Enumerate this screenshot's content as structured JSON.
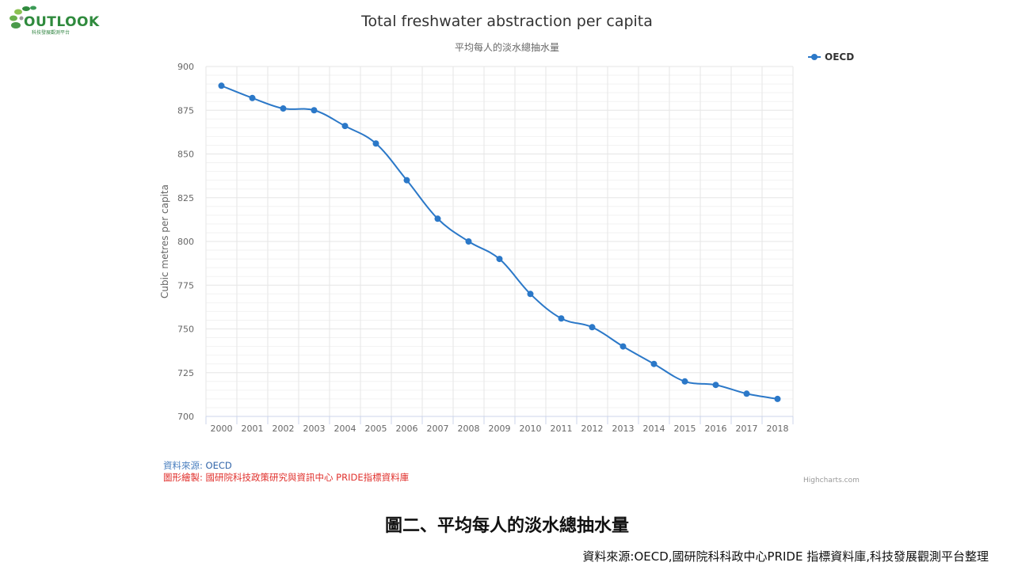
{
  "logo": {
    "text": "OUTLOOK",
    "subtext": "科技發展觀測平台",
    "icon": "leaf-logo-icon",
    "color": "#2f8a3d"
  },
  "legend": {
    "label": "OECD"
  },
  "credits": "Highcharts.com",
  "source": {
    "label": "資料來源:",
    "value": "OECD"
  },
  "drawn_by": "圖形繪製: 國研院科技政策研究與資訊中心 PRIDE指標資料庫",
  "caption": "圖二、平均每人的淡水總抽水量",
  "footer": "資料來源:OECD,國研院科科政中心PRIDE 指標資料庫,科技發展觀測平台整理",
  "colors": {
    "series": "#2b78c8",
    "grid": "#e6e6e6",
    "axis": "#ccd6eb",
    "drawn_by": "#e0302c",
    "source": "#4a7fbf"
  },
  "chart_data": {
    "type": "line",
    "title": "Total freshwater abstraction per capita",
    "subtitle": "平均每人的淡水總抽水量",
    "xlabel": "",
    "ylabel": "Cubic metres per capita",
    "categories": [
      "2000",
      "2001",
      "2002",
      "2003",
      "2004",
      "2005",
      "2006",
      "2007",
      "2008",
      "2009",
      "2010",
      "2011",
      "2012",
      "2013",
      "2014",
      "2015",
      "2016",
      "2017",
      "2018"
    ],
    "series": [
      {
        "name": "OECD",
        "values": [
          889,
          882,
          876,
          875,
          866,
          856,
          835,
          813,
          800,
          790,
          770,
          756,
          751,
          740,
          730,
          720,
          718,
          713,
          710
        ]
      }
    ],
    "ylim": [
      700,
      900
    ],
    "yticks": [
      700,
      725,
      750,
      775,
      800,
      825,
      850,
      875,
      900
    ],
    "grid": true,
    "legend_position": "top-right"
  }
}
